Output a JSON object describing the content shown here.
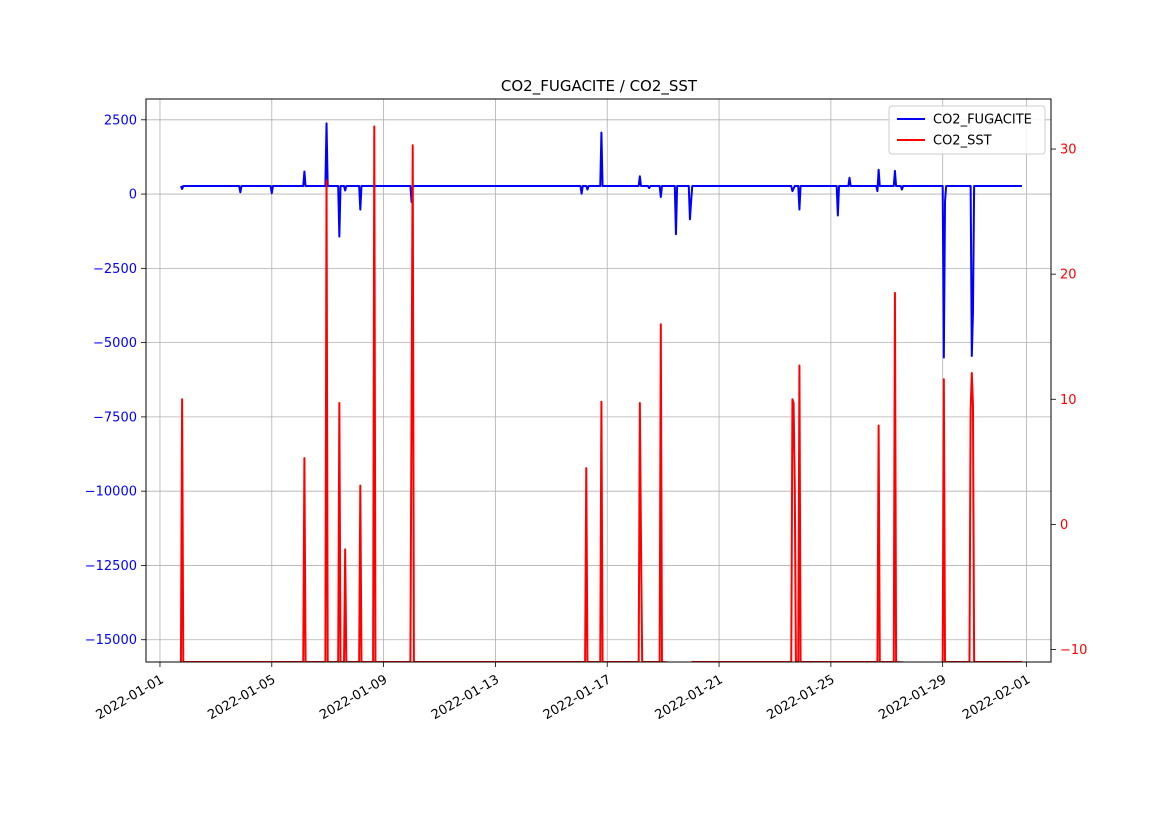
{
  "chart_data": {
    "type": "line",
    "title": "CO2_FUGACITE / CO2_SST",
    "xlabel": "",
    "ylabel_left": "",
    "ylabel_right": "",
    "grid": true,
    "legend_position": "top-right",
    "x_ticks": [
      "2022-01-01",
      "2022-01-05",
      "2022-01-09",
      "2022-01-13",
      "2022-01-17",
      "2022-01-21",
      "2022-01-25",
      "2022-01-29",
      "2022-02-01"
    ],
    "y_left_ticks": [
      2500,
      0,
      -2500,
      -5000,
      -7500,
      -10000,
      -12500,
      -15000
    ],
    "y_left_tick_labels": [
      "2500",
      "0",
      "−2500",
      "−5000",
      "−7500",
      "−10000",
      "−12500",
      "−15000"
    ],
    "y_right_ticks": [
      30,
      20,
      10,
      0,
      -10
    ],
    "y_right_tick_labels": [
      "30",
      "20",
      "10",
      "0",
      "−10"
    ],
    "ylim_left": [
      -15750,
      3200
    ],
    "ylim_right": [
      -11,
      34
    ],
    "xlim": [
      "2021-12-31T12:00",
      "2022-02-01T21:00"
    ],
    "colors": {
      "left_axis": "#0000ff",
      "right_axis": "#ff0000",
      "grid": "#b0b0b0"
    },
    "series": [
      {
        "name": "CO2_FUGACITE",
        "axis": "left",
        "color": "#0000ff",
        "points": [
          [
            "2022-01-01T18:00",
            270
          ],
          [
            "2022-01-01T19:00",
            170
          ],
          [
            "2022-01-01T20:00",
            270
          ],
          [
            "2022-01-03T20:00",
            270
          ],
          [
            "2022-01-03T21:00",
            60
          ],
          [
            "2022-01-03T22:00",
            270
          ],
          [
            "2022-01-04T23:00",
            270
          ],
          [
            "2022-01-05T00:00",
            30
          ],
          [
            "2022-01-05T01:00",
            270
          ],
          [
            "2022-01-06T03:00",
            270
          ],
          [
            "2022-01-06T04:00",
            760
          ],
          [
            "2022-01-06T05:00",
            270
          ],
          [
            "2022-01-06T22:00",
            270
          ],
          [
            "2022-01-06T23:00",
            2380
          ],
          [
            "2022-01-07T00:00",
            270
          ],
          [
            "2022-01-07T09:00",
            270
          ],
          [
            "2022-01-07T10:00",
            -1430
          ],
          [
            "2022-01-07T11:00",
            270
          ],
          [
            "2022-01-07T14:00",
            270
          ],
          [
            "2022-01-07T15:00",
            120
          ],
          [
            "2022-01-07T16:00",
            270
          ],
          [
            "2022-01-08T03:00",
            270
          ],
          [
            "2022-01-08T04:00",
            -520
          ],
          [
            "2022-01-08T05:00",
            270
          ],
          [
            "2022-01-09T23:00",
            270
          ],
          [
            "2022-01-10T00:00",
            -270
          ],
          [
            "2022-01-10T01:00",
            270
          ],
          [
            "2022-01-16T01:00",
            270
          ],
          [
            "2022-01-16T02:00",
            10
          ],
          [
            "2022-01-16T03:00",
            270
          ],
          [
            "2022-01-16T06:00",
            270
          ],
          [
            "2022-01-16T07:00",
            150
          ],
          [
            "2022-01-16T08:00",
            270
          ],
          [
            "2022-01-16T18:00",
            270
          ],
          [
            "2022-01-16T19:00",
            2070
          ],
          [
            "2022-01-16T20:00",
            270
          ],
          [
            "2022-01-18T03:00",
            270
          ],
          [
            "2022-01-18T04:00",
            600
          ],
          [
            "2022-01-18T05:00",
            270
          ],
          [
            "2022-01-18T11:00",
            270
          ],
          [
            "2022-01-18T12:00",
            200
          ],
          [
            "2022-01-18T13:00",
            270
          ],
          [
            "2022-01-18T21:00",
            270
          ],
          [
            "2022-01-18T22:00",
            -100
          ],
          [
            "2022-01-18T23:00",
            270
          ],
          [
            "2022-01-19T10:00",
            270
          ],
          [
            "2022-01-19T11:00",
            -1350
          ],
          [
            "2022-01-19T12:00",
            270
          ],
          [
            "2022-01-19T22:00",
            270
          ],
          [
            "2022-01-19T23:00",
            -850
          ],
          [
            "2022-01-20T00:00",
            -250
          ],
          [
            "2022-01-20T01:00",
            270
          ],
          [
            "2022-01-23T14:00",
            270
          ],
          [
            "2022-01-23T15:00",
            100
          ],
          [
            "2022-01-23T17:00",
            270
          ],
          [
            "2022-01-23T20:00",
            270
          ],
          [
            "2022-01-23T21:00",
            -520
          ],
          [
            "2022-01-23T22:00",
            270
          ],
          [
            "2022-01-25T05:00",
            270
          ],
          [
            "2022-01-25T06:00",
            -720
          ],
          [
            "2022-01-25T07:00",
            270
          ],
          [
            "2022-01-25T15:00",
            270
          ],
          [
            "2022-01-25T16:00",
            550
          ],
          [
            "2022-01-25T17:00",
            270
          ],
          [
            "2022-01-26T15:00",
            270
          ],
          [
            "2022-01-26T16:00",
            100
          ],
          [
            "2022-01-26T17:00",
            820
          ],
          [
            "2022-01-26T18:00",
            270
          ],
          [
            "2022-01-27T06:00",
            270
          ],
          [
            "2022-01-27T07:00",
            780
          ],
          [
            "2022-01-27T08:00",
            270
          ],
          [
            "2022-01-27T12:00",
            270
          ],
          [
            "2022-01-27T13:00",
            150
          ],
          [
            "2022-01-27T14:00",
            270
          ],
          [
            "2022-01-29T00:00",
            270
          ],
          [
            "2022-01-29T01:00",
            -5500
          ],
          [
            "2022-01-29T02:00",
            -250
          ],
          [
            "2022-01-29T03:00",
            270
          ],
          [
            "2022-01-30T00:00",
            270
          ],
          [
            "2022-01-30T01:00",
            -5450
          ],
          [
            "2022-01-30T02:00",
            -4000
          ],
          [
            "2022-01-30T03:00",
            270
          ],
          [
            "2022-01-31T20:00",
            270
          ]
        ]
      },
      {
        "name": "CO2_SST",
        "axis": "right",
        "color": "#ff0000",
        "points": [
          [
            "2022-01-01T18:00",
            -11
          ],
          [
            "2022-01-01T19:00",
            10
          ],
          [
            "2022-01-01T20:00",
            -11
          ],
          [
            "2022-01-06T03:00",
            -11
          ],
          [
            "2022-01-06T04:00",
            5.3
          ],
          [
            "2022-01-06T05:00",
            -11
          ],
          [
            "2022-01-06T22:00",
            -11
          ],
          [
            "2022-01-06T23:00",
            27.5
          ],
          [
            "2022-01-07T00:00",
            -11
          ],
          [
            "2022-01-07T09:00",
            -11
          ],
          [
            "2022-01-07T10:00",
            9.7
          ],
          [
            "2022-01-07T11:00",
            -11
          ],
          [
            "2022-01-07T14:00",
            -11
          ],
          [
            "2022-01-07T15:00",
            -2
          ],
          [
            "2022-01-07T16:00",
            -11
          ],
          [
            "2022-01-08T03:00",
            -11
          ],
          [
            "2022-01-08T04:00",
            3.1
          ],
          [
            "2022-01-08T05:00",
            -11
          ],
          [
            "2022-01-08T15:00",
            -11
          ],
          [
            "2022-01-08T16:00",
            31.8
          ],
          [
            "2022-01-08T17:00",
            -11
          ],
          [
            "2022-01-09T23:00",
            -11
          ],
          [
            "2022-01-10T00:00",
            10
          ],
          [
            "2022-01-10T01:00",
            30.3
          ],
          [
            "2022-01-10T02:00",
            -11
          ],
          [
            "2022-01-16T05:00",
            -11
          ],
          [
            "2022-01-16T06:00",
            4.5
          ],
          [
            "2022-01-16T07:00",
            -11
          ],
          [
            "2022-01-16T18:00",
            -11
          ],
          [
            "2022-01-16T19:00",
            9.8
          ],
          [
            "2022-01-16T20:00",
            -11
          ],
          [
            "2022-01-18T03:00",
            -11
          ],
          [
            "2022-01-18T04:00",
            9.7
          ],
          [
            "2022-01-18T05:00",
            -1.5
          ],
          [
            "2022-01-18T06:00",
            -11
          ],
          [
            "2022-01-18T21:00",
            -11
          ],
          [
            "2022-01-18T22:00",
            16
          ],
          [
            "2022-01-18T23:00",
            -11.2
          ],
          [
            "2022-01-19T00:00",
            -11
          ],
          [
            "2022-01-20T00:00",
            -11.2
          ],
          [
            "2022-01-20T01:00",
            -11
          ],
          [
            "2022-01-23T14:00",
            -11
          ],
          [
            "2022-01-23T15:00",
            10
          ],
          [
            "2022-01-23T16:00",
            9.7
          ],
          [
            "2022-01-23T17:00",
            3.2
          ],
          [
            "2022-01-23T18:00",
            -11
          ],
          [
            "2022-01-23T20:00",
            -11
          ],
          [
            "2022-01-23T21:00",
            12.7
          ],
          [
            "2022-01-23T22:00",
            -11
          ],
          [
            "2022-01-26T16:00",
            -11
          ],
          [
            "2022-01-26T17:00",
            7.9
          ],
          [
            "2022-01-26T18:00",
            -11
          ],
          [
            "2022-01-27T06:00",
            -11
          ],
          [
            "2022-01-27T07:00",
            18.5
          ],
          [
            "2022-01-27T08:00",
            -11
          ],
          [
            "2022-01-29T00:00",
            -11.2
          ],
          [
            "2022-01-29T01:00",
            11.6
          ],
          [
            "2022-01-29T02:00",
            -11
          ],
          [
            "2022-01-29T23:00",
            -11
          ],
          [
            "2022-01-30T00:00",
            9.1
          ],
          [
            "2022-01-30T01:00",
            12.1
          ],
          [
            "2022-01-30T02:00",
            9.6
          ],
          [
            "2022-01-30T03:00",
            -11
          ],
          [
            "2022-01-31T20:00",
            -11
          ]
        ]
      }
    ]
  }
}
